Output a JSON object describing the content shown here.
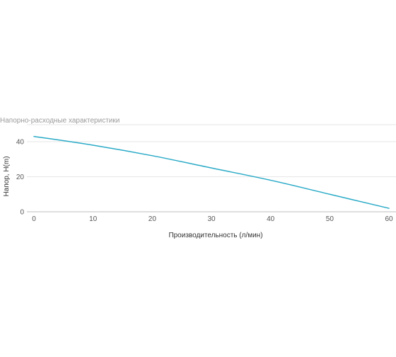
{
  "chart_data": {
    "type": "line",
    "title": "Напорно-расходные характеристики",
    "xlabel": "Производительность (л/мин)",
    "ylabel": "Напор, H(m)",
    "xlim": [
      0,
      60
    ],
    "ylim": [
      0,
      40
    ],
    "x_ticks": [
      0,
      10,
      20,
      30,
      40,
      50,
      60
    ],
    "y_ticks": [
      0,
      20,
      40
    ],
    "grid": true,
    "legend": "none",
    "series": [
      {
        "color": "#2aaac7",
        "points": [
          {
            "x": 0,
            "y": 43
          },
          {
            "x": 10,
            "y": 38
          },
          {
            "x": 20,
            "y": 32
          },
          {
            "x": 30,
            "y": 25
          },
          {
            "x": 40,
            "y": 18
          },
          {
            "x": 50,
            "y": 10
          },
          {
            "x": 60,
            "y": 2
          }
        ]
      }
    ]
  }
}
